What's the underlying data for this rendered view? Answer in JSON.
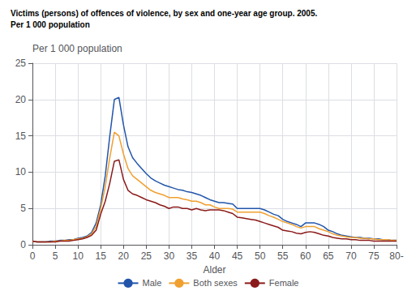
{
  "chart_data": {
    "type": "line",
    "title": "Victims (persons) of offences of violence, by sex and one-year age group. 2005.",
    "subtitle": "Per 1 000 population",
    "ylabel": "Per 1 000 population",
    "xlabel": "Alder",
    "xlim": [
      0,
      80
    ],
    "ylim": [
      0,
      25
    ],
    "xticks": [
      0,
      5,
      10,
      15,
      20,
      25,
      30,
      35,
      40,
      45,
      50,
      55,
      60,
      65,
      70,
      75,
      {
        "value": 80,
        "label": "80-"
      }
    ],
    "yticks": [
      0,
      5,
      10,
      15,
      20,
      25
    ],
    "grid": true,
    "legend": "bottom",
    "x": [
      0,
      1,
      2,
      3,
      4,
      5,
      6,
      7,
      8,
      9,
      10,
      11,
      12,
      13,
      14,
      15,
      16,
      17,
      18,
      19,
      20,
      21,
      22,
      23,
      24,
      25,
      26,
      27,
      28,
      29,
      30,
      31,
      32,
      33,
      34,
      35,
      36,
      37,
      38,
      39,
      40,
      41,
      42,
      43,
      44,
      45,
      46,
      47,
      48,
      49,
      50,
      51,
      52,
      53,
      54,
      55,
      56,
      57,
      58,
      59,
      60,
      61,
      62,
      63,
      64,
      65,
      66,
      67,
      68,
      69,
      70,
      71,
      72,
      73,
      74,
      75,
      76,
      77,
      78,
      79,
      80
    ],
    "series": [
      {
        "name": "Male",
        "color": "#2255AA",
        "values": [
          0.5,
          0.4,
          0.4,
          0.4,
          0.5,
          0.5,
          0.6,
          0.6,
          0.7,
          0.7,
          0.9,
          1.0,
          1.2,
          1.7,
          3.0,
          5.5,
          9.5,
          15.0,
          20.0,
          20.3,
          16.5,
          13.5,
          12.0,
          11.2,
          10.5,
          9.8,
          9.2,
          8.8,
          8.5,
          8.2,
          8.0,
          7.8,
          7.6,
          7.5,
          7.3,
          7.2,
          7.0,
          6.8,
          6.5,
          6.2,
          6.0,
          5.8,
          5.8,
          5.7,
          5.6,
          5.0,
          5.0,
          5.0,
          5.0,
          5.0,
          5.0,
          4.8,
          4.5,
          4.2,
          4.0,
          3.5,
          3.2,
          3.0,
          2.8,
          2.5,
          3.0,
          3.0,
          3.0,
          2.8,
          2.5,
          2.0,
          1.8,
          1.5,
          1.3,
          1.2,
          1.1,
          1.0,
          1.0,
          0.9,
          0.9,
          0.8,
          0.8,
          0.7,
          0.7,
          0.6,
          0.6
        ]
      },
      {
        "name": "Both sexes",
        "color": "#F0A030",
        "values": [
          0.5,
          0.4,
          0.4,
          0.4,
          0.4,
          0.5,
          0.5,
          0.6,
          0.6,
          0.7,
          0.8,
          0.9,
          1.1,
          1.5,
          2.5,
          5.0,
          8.0,
          12.0,
          15.5,
          15.0,
          12.5,
          10.5,
          9.5,
          9.0,
          8.5,
          8.0,
          7.5,
          7.2,
          7.0,
          6.8,
          6.5,
          6.5,
          6.5,
          6.3,
          6.2,
          6.0,
          6.0,
          5.8,
          5.5,
          5.5,
          5.2,
          5.0,
          5.0,
          5.0,
          4.9,
          4.5,
          4.5,
          4.5,
          4.5,
          4.5,
          4.5,
          4.3,
          4.0,
          3.8,
          3.5,
          3.2,
          3.0,
          2.8,
          2.5,
          2.3,
          2.5,
          2.5,
          2.5,
          2.2,
          2.0,
          1.8,
          1.5,
          1.3,
          1.2,
          1.1,
          1.0,
          1.0,
          0.9,
          0.9,
          0.8,
          0.8,
          0.7,
          0.7,
          0.7,
          0.6,
          0.6
        ]
      },
      {
        "name": "Female",
        "color": "#8B1A1A",
        "values": [
          0.5,
          0.4,
          0.4,
          0.4,
          0.4,
          0.4,
          0.5,
          0.5,
          0.5,
          0.6,
          0.7,
          0.8,
          1.0,
          1.3,
          2.0,
          4.2,
          6.0,
          8.5,
          11.5,
          11.7,
          9.0,
          7.5,
          7.0,
          6.8,
          6.5,
          6.2,
          6.0,
          5.8,
          5.5,
          5.3,
          5.0,
          5.2,
          5.2,
          5.0,
          5.0,
          4.8,
          5.0,
          4.8,
          4.7,
          4.8,
          4.8,
          4.8,
          4.7,
          4.5,
          4.3,
          3.8,
          3.7,
          3.6,
          3.5,
          3.4,
          3.2,
          3.0,
          2.8,
          2.6,
          2.4,
          2.0,
          1.9,
          1.8,
          1.6,
          1.5,
          1.7,
          1.8,
          1.7,
          1.5,
          1.3,
          1.2,
          1.0,
          0.9,
          0.8,
          0.8,
          0.7,
          0.7,
          0.6,
          0.6,
          0.6,
          0.5,
          0.5,
          0.5,
          0.5,
          0.5,
          0.5
        ]
      }
    ]
  }
}
